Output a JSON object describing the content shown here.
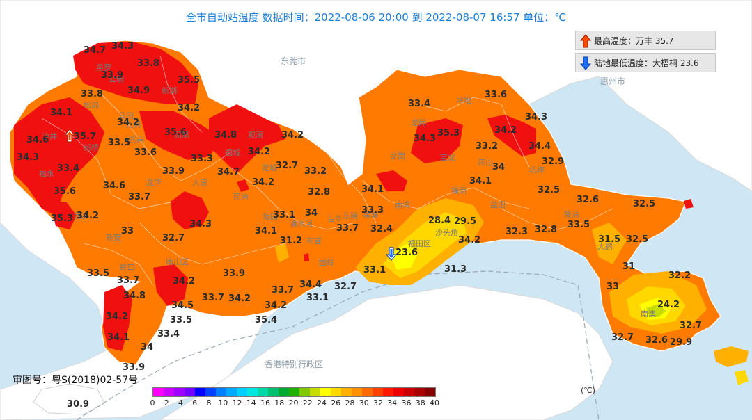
{
  "header": {
    "title": "全市自动站温度  数据时间：2022-08-06 20:00 到 2022-08-07 16:57  单位：℃"
  },
  "extremes": {
    "max": {
      "label": "最高温度：万丰 35.7"
    },
    "min": {
      "label": "陆地最低温度：大梧桐 23.6"
    }
  },
  "approval": "审图号：粤S(2018)02-57号",
  "places": [
    "东莞市",
    "惠州市",
    "香港特别行政区"
  ],
  "districts": [
    "燕罗",
    "公明",
    "新湖",
    "松岗",
    "沙井",
    "新桥",
    "马田",
    "光明",
    "凤凰",
    "观澜",
    "福永",
    "西乡",
    "石岩",
    "大浪",
    "龙华",
    "福城",
    "民治",
    "龙城",
    "坂田",
    "清水河",
    "布吉",
    "吉华",
    "园岭",
    "龙岗",
    "宝龙",
    "龙岗",
    "坪地",
    "坑梓",
    "坪山",
    "横岗",
    "南湾",
    "东晓",
    "莲塘",
    "福田区",
    "沙头角",
    "盐田",
    "南山区",
    "蛇口",
    "新安",
    "大鹏",
    "南澳",
    "葵涌"
  ],
  "temperatures": [
    {
      "v": "34.7"
    },
    {
      "v": "34.3"
    },
    {
      "v": "33.8"
    },
    {
      "v": "33.9"
    },
    {
      "v": "35.5"
    },
    {
      "v": "34.9"
    },
    {
      "v": "33.8"
    },
    {
      "v": "34.2"
    },
    {
      "v": "34.1"
    },
    {
      "v": "34.2"
    },
    {
      "v": "35.6"
    },
    {
      "v": "34.8"
    },
    {
      "v": "34.2"
    },
    {
      "v": "34.6"
    },
    {
      "v": "35.7"
    },
    {
      "v": "33.5"
    },
    {
      "v": "33.6"
    },
    {
      "v": "34.3"
    },
    {
      "v": "33.4"
    },
    {
      "v": "33.9"
    },
    {
      "v": "33.3"
    },
    {
      "v": "34.7"
    },
    {
      "v": "34.2"
    },
    {
      "v": "32.7"
    },
    {
      "v": "33.2"
    },
    {
      "v": "34.6"
    },
    {
      "v": "34.2"
    },
    {
      "v": "35.6"
    },
    {
      "v": "33.7"
    },
    {
      "v": "32.8"
    },
    {
      "v": "34.2"
    },
    {
      "v": "35.3"
    },
    {
      "v": "33"
    },
    {
      "v": "34.3"
    },
    {
      "v": "33.1"
    },
    {
      "v": "34"
    },
    {
      "v": "34.1"
    },
    {
      "v": "32.7"
    },
    {
      "v": "31.2"
    },
    {
      "v": "33.7"
    },
    {
      "v": "33.4"
    },
    {
      "v": "34.3"
    },
    {
      "v": "35.3"
    },
    {
      "v": "34.2"
    },
    {
      "v": "33.6"
    },
    {
      "v": "34.3"
    },
    {
      "v": "33.2"
    },
    {
      "v": "34.4"
    },
    {
      "v": "34"
    },
    {
      "v": "32.9"
    },
    {
      "v": "34.1"
    },
    {
      "v": "32.5"
    },
    {
      "v": "34.1"
    },
    {
      "v": "33.3"
    },
    {
      "v": "32.4"
    },
    {
      "v": "28.4"
    },
    {
      "v": "29.5"
    },
    {
      "v": "32.6"
    },
    {
      "v": "32.5"
    },
    {
      "v": "33.5"
    },
    {
      "v": "31.5"
    },
    {
      "v": "32.5"
    },
    {
      "v": "34.2"
    },
    {
      "v": "32.3"
    },
    {
      "v": "32.8"
    },
    {
      "v": "23.6"
    },
    {
      "v": "33.1"
    },
    {
      "v": "31.3"
    },
    {
      "v": "33.5"
    },
    {
      "v": "33.7"
    },
    {
      "v": "34.2"
    },
    {
      "v": "33.9"
    },
    {
      "v": "34.8"
    },
    {
      "v": "34.5"
    },
    {
      "v": "33.7"
    },
    {
      "v": "34.2"
    },
    {
      "v": "33.7"
    },
    {
      "v": "34.4"
    },
    {
      "v": "32.7"
    },
    {
      "v": "33.1"
    },
    {
      "v": "34.2"
    },
    {
      "v": "35.4"
    },
    {
      "v": "33.5"
    },
    {
      "v": "34.2"
    },
    {
      "v": "33.4"
    },
    {
      "v": "34.1"
    },
    {
      "v": "34"
    },
    {
      "v": "33.9"
    },
    {
      "v": "31"
    },
    {
      "v": "32.2"
    },
    {
      "v": "33"
    },
    {
      "v": "24.2"
    },
    {
      "v": "32.7"
    },
    {
      "v": "32.7"
    },
    {
      "v": "32.6"
    },
    {
      "v": "29.9"
    },
    {
      "v": "30.9"
    }
  ],
  "color_scale": {
    "colors": [
      "#ff00ff",
      "#cc00ff",
      "#a000ff",
      "#7000ff",
      "#0000ff",
      "#0040ff",
      "#0080ff",
      "#00aaff",
      "#00d0ff",
      "#00e8e0",
      "#00d8a8",
      "#00c070",
      "#00aa30",
      "#20b000",
      "#80c800",
      "#c8dc00",
      "#ffff00",
      "#ffd800",
      "#ffb000",
      "#ff9000",
      "#ff6a00",
      "#ff4000",
      "#ff1800",
      "#ee0000",
      "#cc0000",
      "#aa0000",
      "#880000"
    ],
    "ticks": [
      "0",
      "2",
      "4",
      "6",
      "8",
      "10",
      "12",
      "14",
      "16",
      "18",
      "20",
      "22",
      "24",
      "26",
      "28",
      "30",
      "32",
      "34",
      "36",
      "38",
      "40"
    ],
    "unit": "(℃)"
  }
}
